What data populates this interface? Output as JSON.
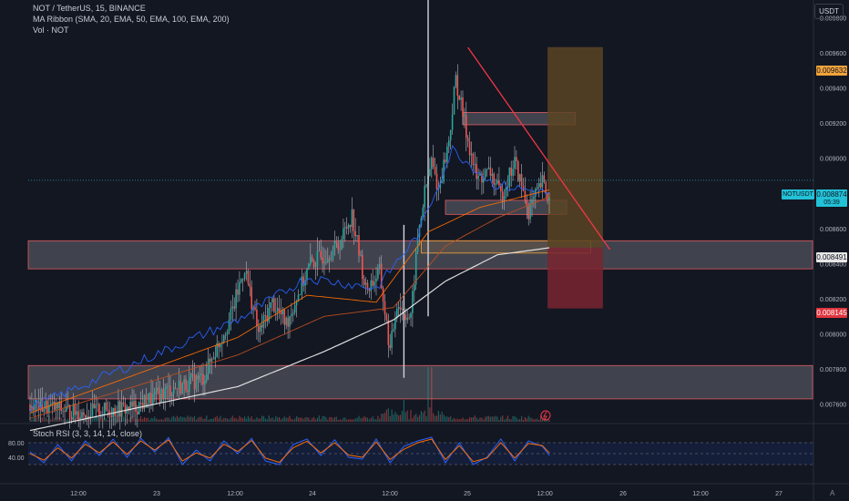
{
  "header": {
    "symbol_line": "NOT / TetherUS, 15, BINANCE",
    "ma_line": "MA Ribbon (SMA, 20, EMA, 50, EMA, 100, EMA, 200)",
    "vol_line": "Vol · NOT",
    "osc_line": "Stoch RSI (3, 3, 14, 14, close)",
    "currency": "USDT",
    "scale_corner": "A"
  },
  "price_tags": {
    "target": "0.009632",
    "last_symbol": "NOTUSDT",
    "last_price": "0.008874",
    "countdown": "05:39",
    "entry": "0.008491",
    "stop": "0.008145"
  },
  "colors": {
    "background": "#131722",
    "up": "#26a69a",
    "down": "#ef5350",
    "wick": "#b2b5be",
    "sma20": "#2962ff",
    "ema50": "#ff6d00",
    "ema100": "#c0501f",
    "ema200": "#e8e8e8",
    "trendline": "#f23645",
    "target_zone": "#5a4423",
    "stop_zone": "#7a2530",
    "stoch_k": "#2962ff",
    "stoch_d": "#ff6d00"
  },
  "chart_data": [
    {
      "type": "candlestick",
      "title": "NOT / TetherUS, 15, BINANCE",
      "y_ticks": [
        "0.009800",
        "0.009600",
        "0.009400",
        "0.009200",
        "0.009000",
        "0.008800",
        "0.008600",
        "0.008400",
        "0.008200",
        "0.008000",
        "0.007800",
        "0.007600"
      ],
      "x_ticks": [
        "12:00",
        "23",
        "12:00",
        "24",
        "12:00",
        "25",
        "12:00",
        "26",
        "12:00",
        "27"
      ],
      "ylim": [
        0.0075,
        0.0099
      ],
      "anchors_price": [
        [
          0,
          0.0076
        ],
        [
          30,
          0.00755
        ],
        [
          60,
          0.00758
        ],
        [
          80,
          0.00768
        ],
        [
          100,
          0.00775
        ],
        [
          116,
          0.0081
        ],
        [
          124,
          0.00838
        ],
        [
          132,
          0.008
        ],
        [
          140,
          0.00818
        ],
        [
          148,
          0.00806
        ],
        [
          162,
          0.0084
        ],
        [
          178,
          0.0085
        ],
        [
          186,
          0.00868
        ],
        [
          194,
          0.00825
        ],
        [
          202,
          0.00835
        ],
        [
          208,
          0.0079
        ],
        [
          212,
          0.00818
        ],
        [
          220,
          0.00808
        ],
        [
          224,
          0.00855
        ],
        [
          228,
          0.0088
        ],
        [
          232,
          0.00898
        ],
        [
          236,
          0.00882
        ],
        [
          242,
          0.0091
        ],
        [
          246,
          0.00945
        ],
        [
          252,
          0.00915
        ],
        [
          258,
          0.00888
        ],
        [
          266,
          0.00892
        ],
        [
          272,
          0.00878
        ],
        [
          280,
          0.00898
        ],
        [
          288,
          0.0087
        ],
        [
          296,
          0.00886
        ],
        [
          300,
          0.00876
        ]
      ],
      "ma_ribbon": {
        "sma20": [
          [
            0,
            0.00758
          ],
          [
            120,
            0.00808
          ],
          [
            160,
            0.00832
          ],
          [
            200,
            0.00826
          ],
          [
            224,
            0.00856
          ],
          [
            244,
            0.00905
          ],
          [
            268,
            0.00885
          ],
          [
            300,
            0.0088
          ]
        ],
        "ema50": [
          [
            0,
            0.00755
          ],
          [
            120,
            0.00798
          ],
          [
            160,
            0.00822
          ],
          [
            200,
            0.00818
          ],
          [
            230,
            0.00858
          ],
          [
            260,
            0.00872
          ],
          [
            300,
            0.00882
          ]
        ],
        "ema100": [
          [
            0,
            0.00752
          ],
          [
            120,
            0.00788
          ],
          [
            170,
            0.0081
          ],
          [
            210,
            0.00815
          ],
          [
            240,
            0.0085
          ],
          [
            270,
            0.00866
          ],
          [
            300,
            0.00878
          ]
        ],
        "ema200": [
          [
            0,
            0.00745
          ],
          [
            120,
            0.0077
          ],
          [
            170,
            0.0079
          ],
          [
            210,
            0.00808
          ],
          [
            240,
            0.0083
          ],
          [
            270,
            0.00845
          ],
          [
            300,
            0.00849
          ]
        ]
      },
      "spikes": [
        {
          "bar": 230,
          "high": 0.0099,
          "low": 0.0081
        },
        {
          "bar": 216,
          "high": 0.00862,
          "low": 0.00775
        }
      ],
      "trendline": {
        "from": [
          253,
          0.00963
        ],
        "to": [
          335,
          0.00848
        ]
      },
      "zones": [
        {
          "name": "resistance-zone",
          "y": [
            0.00919,
            0.00926
          ],
          "bars": [
            250,
            315
          ]
        },
        {
          "name": "support-zone-mid",
          "y": [
            0.00868,
            0.00876
          ],
          "bars": [
            240,
            310
          ]
        },
        {
          "name": "support-zone-upper",
          "y": [
            0.00837,
            0.00853
          ],
          "bars": [
            0,
            445
          ]
        },
        {
          "name": "support-zone-lower",
          "y": [
            0.00763,
            0.00782
          ],
          "bars": [
            0,
            445
          ]
        },
        {
          "name": "entry-box",
          "y": [
            0.00846,
            0.00853
          ],
          "bars": [
            226,
            324
          ]
        }
      ],
      "position": {
        "entry": 0.008491,
        "target": 0.009632,
        "stop": 0.008145,
        "bars": [
          299,
          331
        ]
      }
    },
    {
      "type": "line",
      "title": "Stoch RSI (3, 3, 14, 14, close)",
      "ylim": [
        0,
        100
      ],
      "y_ticks": [
        "80.00",
        "40.00"
      ],
      "bands": [
        80,
        50,
        20
      ],
      "series": [
        {
          "name": "K",
          "anchors": [
            [
              0,
              55
            ],
            [
              8,
              25
            ],
            [
              16,
              75
            ],
            [
              24,
              30
            ],
            [
              32,
              85
            ],
            [
              40,
              45
            ],
            [
              48,
              90
            ],
            [
              56,
              40
            ],
            [
              64,
              92
            ],
            [
              72,
              55
            ],
            [
              80,
              94
            ],
            [
              88,
              20
            ],
            [
              96,
              60
            ],
            [
              104,
              30
            ],
            [
              112,
              85
            ],
            [
              120,
              50
            ],
            [
              128,
              92
            ],
            [
              136,
              30
            ],
            [
              144,
              20
            ],
            [
              152,
              75
            ],
            [
              160,
              90
            ],
            [
              168,
              45
            ],
            [
              176,
              88
            ],
            [
              184,
              40
            ],
            [
              192,
              35
            ],
            [
              200,
              90
            ],
            [
              208,
              25
            ],
            [
              216,
              70
            ],
            [
              224,
              85
            ],
            [
              232,
              95
            ],
            [
              240,
              25
            ],
            [
              248,
              80
            ],
            [
              256,
              20
            ],
            [
              264,
              40
            ],
            [
              272,
              90
            ],
            [
              280,
              30
            ],
            [
              288,
              85
            ],
            [
              296,
              70
            ],
            [
              300,
              45
            ]
          ]
        },
        {
          "name": "D",
          "anchors": [
            [
              0,
              50
            ],
            [
              8,
              32
            ],
            [
              16,
              66
            ],
            [
              24,
              38
            ],
            [
              32,
              76
            ],
            [
              40,
              52
            ],
            [
              48,
              82
            ],
            [
              56,
              48
            ],
            [
              64,
              85
            ],
            [
              72,
              60
            ],
            [
              80,
              88
            ],
            [
              88,
              30
            ],
            [
              96,
              52
            ],
            [
              104,
              38
            ],
            [
              112,
              76
            ],
            [
              120,
              56
            ],
            [
              128,
              86
            ],
            [
              136,
              38
            ],
            [
              144,
              26
            ],
            [
              152,
              66
            ],
            [
              160,
              84
            ],
            [
              168,
              52
            ],
            [
              176,
              80
            ],
            [
              184,
              46
            ],
            [
              192,
              40
            ],
            [
              200,
              82
            ],
            [
              208,
              34
            ],
            [
              216,
              62
            ],
            [
              224,
              80
            ],
            [
              232,
              90
            ],
            [
              240,
              34
            ],
            [
              248,
              72
            ],
            [
              256,
              28
            ],
            [
              264,
              38
            ],
            [
              272,
              80
            ],
            [
              280,
              38
            ],
            [
              288,
              78
            ],
            [
              296,
              72
            ],
            [
              300,
              52
            ]
          ]
        }
      ]
    }
  ]
}
